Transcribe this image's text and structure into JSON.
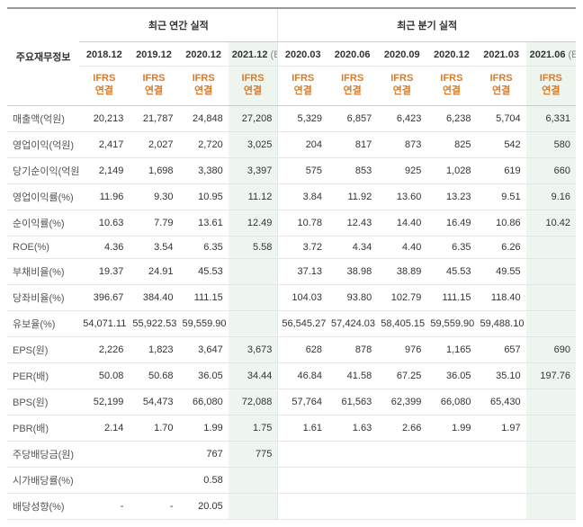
{
  "header": {
    "row_label_title": "주요재무정보",
    "group_annual": "최근 연간 실적",
    "group_quarter": "최근 분기 실적",
    "basis_line1": "IFRS",
    "basis_line2": "연결",
    "estimate_suffix": "(E)"
  },
  "columns": [
    {
      "period": "2018.12",
      "estimate": false,
      "group": "annual"
    },
    {
      "period": "2019.12",
      "estimate": false,
      "group": "annual"
    },
    {
      "period": "2020.12",
      "estimate": false,
      "group": "annual"
    },
    {
      "period": "2021.12",
      "estimate": true,
      "group": "annual"
    },
    {
      "period": "2020.03",
      "estimate": false,
      "group": "quarter"
    },
    {
      "period": "2020.06",
      "estimate": false,
      "group": "quarter"
    },
    {
      "period": "2020.09",
      "estimate": false,
      "group": "quarter"
    },
    {
      "period": "2020.12",
      "estimate": false,
      "group": "quarter"
    },
    {
      "period": "2021.03",
      "estimate": false,
      "group": "quarter"
    },
    {
      "period": "2021.06",
      "estimate": true,
      "group": "quarter"
    }
  ],
  "rows": [
    {
      "label": "매출액(억원)",
      "values": [
        "20,213",
        "21,787",
        "24,848",
        "27,208",
        "5,329",
        "6,857",
        "6,423",
        "6,238",
        "5,704",
        "6,331"
      ]
    },
    {
      "label": "영업이익(억원)",
      "values": [
        "2,417",
        "2,027",
        "2,720",
        "3,025",
        "204",
        "817",
        "873",
        "825",
        "542",
        "580"
      ]
    },
    {
      "label": "당기순이익(억원)",
      "values": [
        "2,149",
        "1,698",
        "3,380",
        "3,397",
        "575",
        "853",
        "925",
        "1,028",
        "619",
        "660"
      ]
    },
    {
      "label": "영업이익률(%)",
      "values": [
        "11.96",
        "9.30",
        "10.95",
        "11.12",
        "3.84",
        "11.92",
        "13.60",
        "13.23",
        "9.51",
        "9.16"
      ]
    },
    {
      "label": "순이익률(%)",
      "values": [
        "10.63",
        "7.79",
        "13.61",
        "12.49",
        "10.78",
        "12.43",
        "14.40",
        "16.49",
        "10.86",
        "10.42"
      ]
    },
    {
      "label": "ROE(%)",
      "values": [
        "4.36",
        "3.54",
        "6.35",
        "5.58",
        "3.72",
        "4.34",
        "4.40",
        "6.35",
        "6.26",
        ""
      ]
    },
    {
      "label": "부채비율(%)",
      "values": [
        "19.37",
        "24.91",
        "45.53",
        "",
        "37.13",
        "38.98",
        "38.89",
        "45.53",
        "49.55",
        ""
      ]
    },
    {
      "label": "당좌비율(%)",
      "values": [
        "396.67",
        "384.40",
        "111.15",
        "",
        "104.03",
        "93.80",
        "102.79",
        "111.15",
        "118.40",
        ""
      ]
    },
    {
      "label": "유보율(%)",
      "values": [
        "54,071.11",
        "55,922.53",
        "59,559.90",
        "",
        "56,545.27",
        "57,424.03",
        "58,405.15",
        "59,559.90",
        "59,488.10",
        ""
      ]
    },
    {
      "label": "EPS(원)",
      "values": [
        "2,226",
        "1,823",
        "3,647",
        "3,673",
        "628",
        "878",
        "976",
        "1,165",
        "657",
        "690"
      ]
    },
    {
      "label": "PER(배)",
      "values": [
        "50.08",
        "50.68",
        "36.05",
        "34.44",
        "46.84",
        "41.58",
        "67.25",
        "36.05",
        "35.10",
        "197.76"
      ]
    },
    {
      "label": "BPS(원)",
      "values": [
        "52,199",
        "54,473",
        "66,080",
        "72,088",
        "57,764",
        "61,563",
        "62,399",
        "66,080",
        "65,430",
        ""
      ]
    },
    {
      "label": "PBR(배)",
      "values": [
        "2.14",
        "1.70",
        "1.99",
        "1.75",
        "1.61",
        "1.63",
        "2.66",
        "1.99",
        "1.97",
        ""
      ]
    },
    {
      "label": "주당배당금(원)",
      "values": [
        "",
        "",
        "767",
        "775",
        "",
        "",
        "",
        "",
        "",
        ""
      ]
    },
    {
      "label": "시가배당률(%)",
      "values": [
        "",
        "",
        "0.58",
        "",
        "",
        "",
        "",
        "",
        "",
        ""
      ]
    },
    {
      "label": "배당성향(%)",
      "values": [
        "-",
        "-",
        "20.05",
        "",
        "",
        "",
        "",
        "",
        "",
        ""
      ]
    }
  ],
  "style": {
    "estimate_bg": "#eef5ee",
    "basis_color": "#d97b29",
    "border_color": "#e5e5e5",
    "top_border_color": "#999999",
    "text_color": "#333333"
  }
}
